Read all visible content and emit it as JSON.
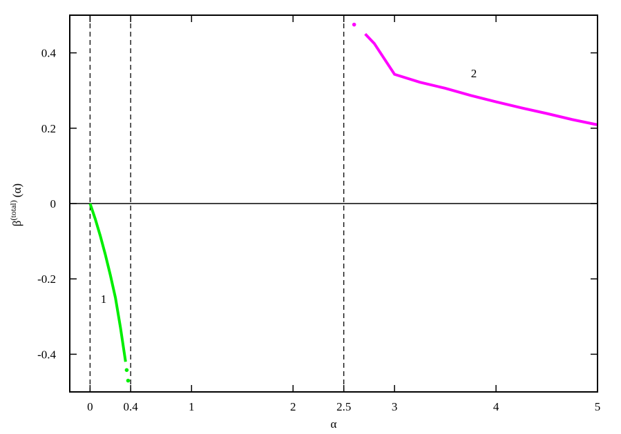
{
  "chart_data": {
    "type": "line",
    "x_label": "α",
    "y_label": {
      "base": "β",
      "sup": "(total)",
      "arg": "(α)"
    },
    "xlim": [
      -0.2,
      5
    ],
    "ylim": [
      -0.5,
      0.5
    ],
    "xticks": [
      0,
      0.4,
      1,
      2,
      2.5,
      3,
      4,
      5
    ],
    "yticks": [
      -0.4,
      -0.2,
      0,
      0.2,
      0.4
    ],
    "vlines": [
      0,
      0.4,
      2.5
    ],
    "hlines": [
      0
    ],
    "series": [
      {
        "name": "1",
        "color": "#00ee00",
        "x": [
          0,
          0.05,
          0.1,
          0.15,
          0.2,
          0.25,
          0.3,
          0.35
        ],
        "values": [
          0,
          -0.04,
          -0.085,
          -0.135,
          -0.19,
          -0.25,
          -0.33,
          -0.42
        ],
        "markers": {
          "x": [
            0.361,
            0.375
          ],
          "values": [
            -0.442,
            -0.47
          ]
        }
      },
      {
        "name": "2",
        "color": "#ff00ff",
        "x": [
          2.711,
          2.8,
          3,
          3.25,
          3.5,
          3.75,
          4,
          4.25,
          4.5,
          4.75,
          5
        ],
        "values": [
          0.45,
          0.425,
          0.343,
          0.322,
          0.306,
          0.287,
          0.27,
          0.254,
          0.239,
          0.223,
          0.209
        ],
        "markers": {
          "x": [
            2.602
          ],
          "values": [
            0.475
          ]
        }
      }
    ]
  }
}
